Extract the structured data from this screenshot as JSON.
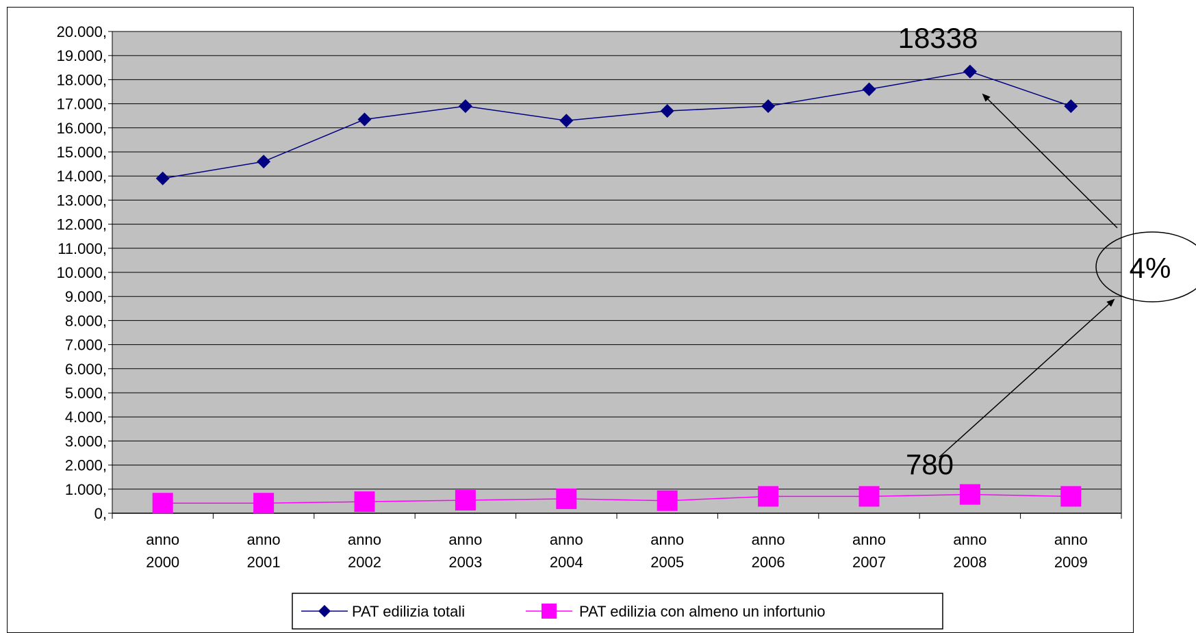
{
  "chart_data": {
    "type": "line",
    "categories": [
      [
        "anno",
        "2000"
      ],
      [
        "anno",
        "2001"
      ],
      [
        "anno",
        "2002"
      ],
      [
        "anno",
        "2003"
      ],
      [
        "anno",
        "2004"
      ],
      [
        "anno",
        "2005"
      ],
      [
        "anno",
        "2006"
      ],
      [
        "anno",
        "2007"
      ],
      [
        "anno",
        "2008"
      ],
      [
        "anno",
        "2009"
      ]
    ],
    "series": [
      {
        "name": "PAT edilizia totali",
        "color": "#000080",
        "marker": "diamond",
        "values": [
          13900,
          14600,
          16350,
          16900,
          16300,
          16700,
          16900,
          17600,
          18338,
          16900
        ]
      },
      {
        "name": "PAT edilizia con almeno un infortunio",
        "color": "#FF00FF",
        "marker": "square",
        "values": [
          420,
          420,
          480,
          540,
          600,
          520,
          700,
          700,
          780,
          700
        ]
      }
    ],
    "ylim": [
      0,
      20000
    ],
    "y_ticks": [
      "0,",
      "1.000,",
      "2.000,",
      "3.000,",
      "4.000,",
      "5.000,",
      "6.000,",
      "7.000,",
      "8.000,",
      "9.000,",
      "10.000,",
      "11.000,",
      "12.000,",
      "13.000,",
      "14.000,",
      "15.000,",
      "16.000,",
      "17.000,",
      "18.000,",
      "19.000,",
      "20.000,"
    ],
    "grid": true,
    "plot_background": "#C0C0C0",
    "legend_placement": "bottom",
    "annotations": {
      "peak_label": "18338",
      "injury_peak_label": "780",
      "ratio_label": "4%"
    }
  }
}
